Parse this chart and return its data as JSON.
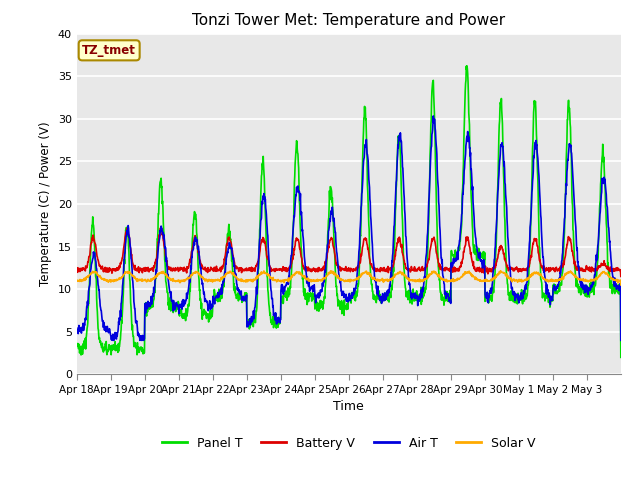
{
  "title": "Tonzi Tower Met: Temperature and Power",
  "xlabel": "Time",
  "ylabel": "Temperature (C) / Power (V)",
  "ylim": [
    0,
    40
  ],
  "fig_facecolor": "#ffffff",
  "plot_facecolor": "#e8e8e8",
  "label_box_text": "TZ_tmet",
  "label_box_facecolor": "#ffffcc",
  "label_box_edgecolor": "#aa8800",
  "label_text_color": "#880000",
  "xtick_labels": [
    "Apr 18",
    "Apr 19",
    "Apr 20",
    "Apr 21",
    "Apr 22",
    "Apr 23",
    "Apr 24",
    "Apr 25",
    "Apr 26",
    "Apr 27",
    "Apr 28",
    "Apr 29",
    "Apr 30",
    "May 1",
    "May 2",
    "May 3"
  ],
  "legend_labels": [
    "Panel T",
    "Battery V",
    "Air T",
    "Solar V"
  ],
  "legend_colors": [
    "#00dd00",
    "#dd0000",
    "#0000dd",
    "#ffaa00"
  ],
  "ytick_vals": [
    0,
    5,
    10,
    15,
    20,
    25,
    30,
    35,
    40
  ],
  "grid_color": "#ffffff",
  "line_width": 1.2
}
